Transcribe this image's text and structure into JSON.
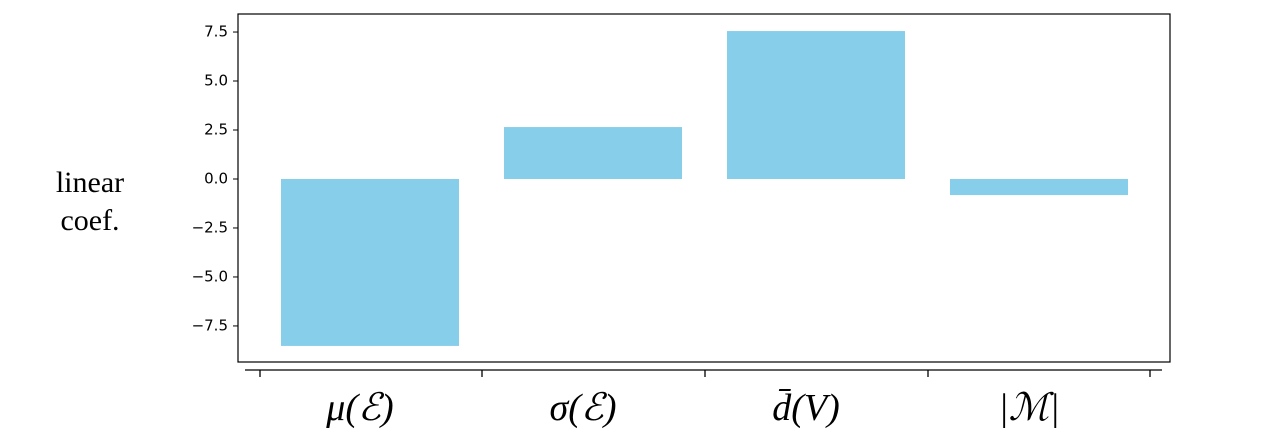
{
  "chart_data": {
    "type": "bar",
    "ylabel": "linear coef.",
    "categories": [
      "μ(ℰ)",
      "σ(ℰ)",
      "d̄(V)",
      "|ℳ|"
    ],
    "values": [
      -8.52,
      2.65,
      7.55,
      -0.82
    ],
    "color": "#87ceeb",
    "ylim": [
      -9.34,
      8.42
    ],
    "yticks": [
      7.5,
      {
        "value": 5,
        "label": "5.0"
      },
      2.5,
      {
        "value": 0,
        "label": "0.0"
      },
      {
        "value": -2.5,
        "label": "−2.5"
      },
      {
        "value": -5,
        "label": "−5.0"
      },
      {
        "value": -7.5,
        "label": "−7.5"
      }
    ],
    "grid": false
  }
}
